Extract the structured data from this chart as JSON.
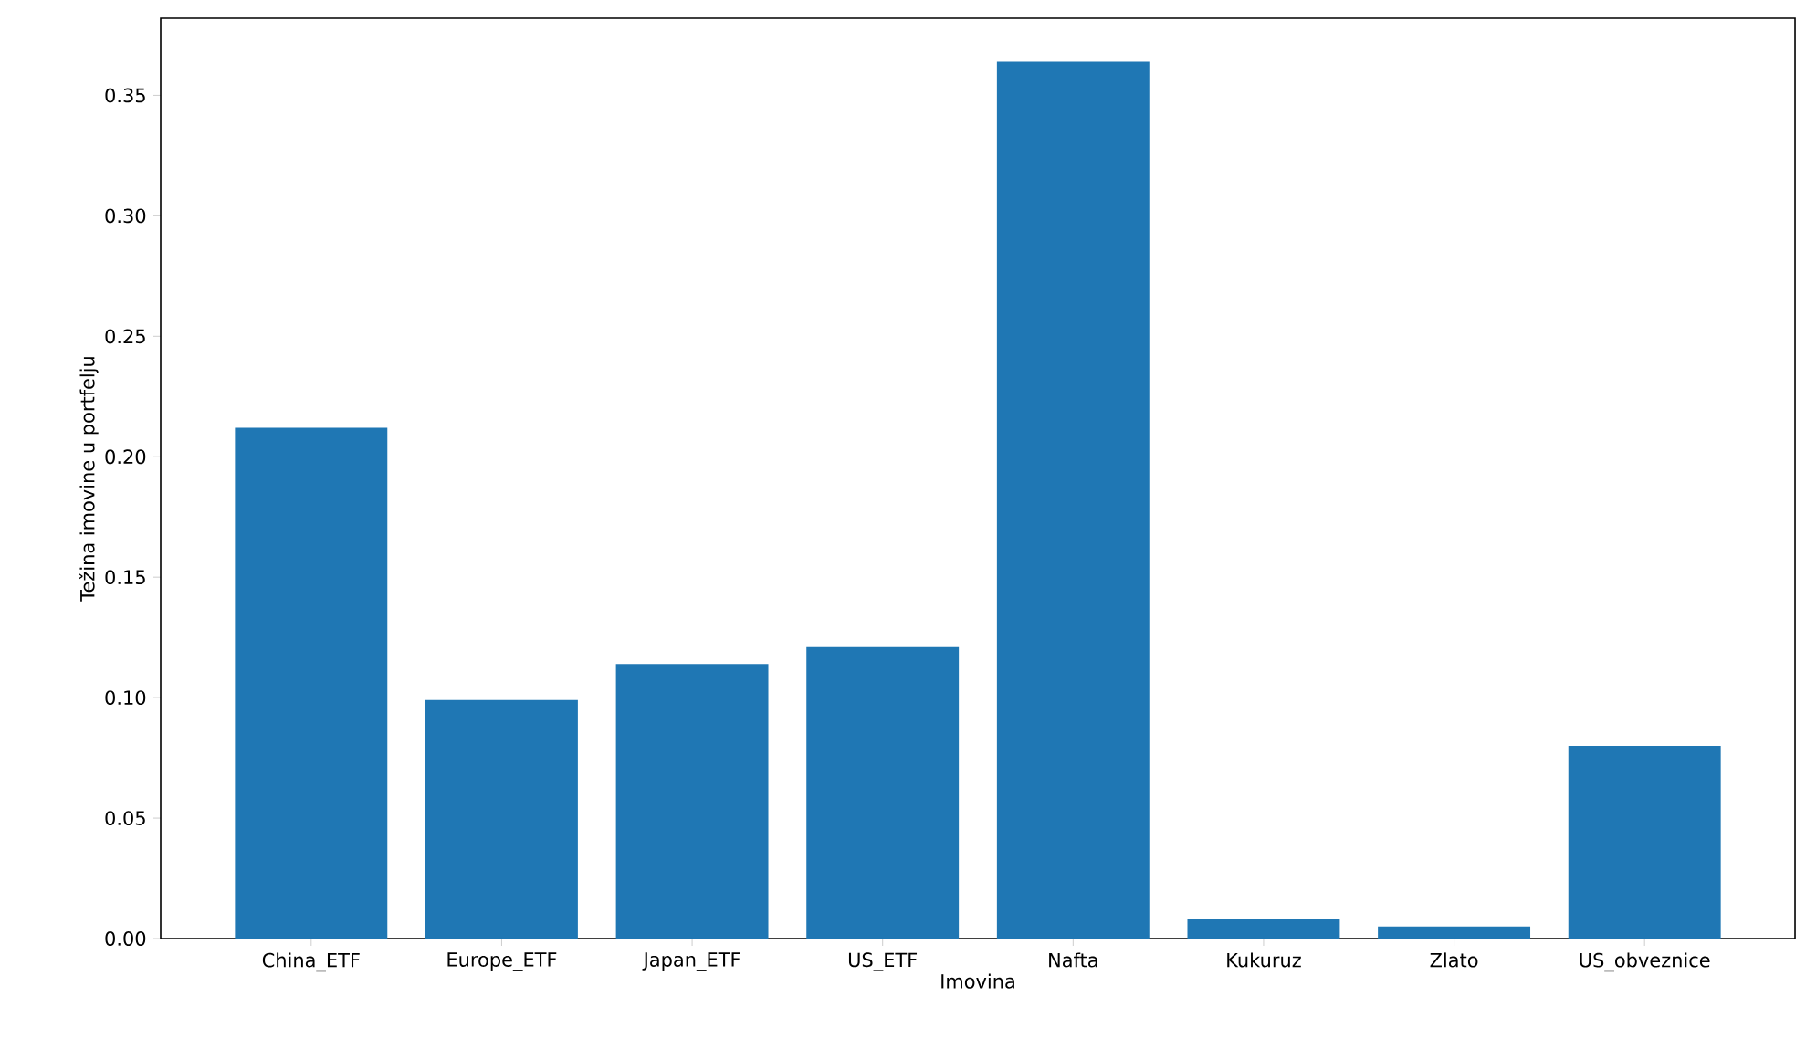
{
  "chart_data": {
    "type": "bar",
    "xlabel": "Imovina",
    "ylabel": "Težina imovine u portfelju",
    "categories": [
      "China_ETF",
      "Europe_ETF",
      "Japan_ETF",
      "US_ETF",
      "Nafta",
      "Kukuruz",
      "Zlato",
      "US_obveznice"
    ],
    "values": [
      0.212,
      0.099,
      0.114,
      0.121,
      0.364,
      0.008,
      0.005,
      0.08
    ],
    "color": "#1f77b4",
    "ylim": [
      0,
      0.382
    ],
    "yticks": [
      {
        "value": 0,
        "label": "0.00"
      },
      {
        "value": 0.05,
        "label": "0.05"
      },
      {
        "value": 0.1,
        "label": "0.10"
      },
      {
        "value": 0.15,
        "label": "0.15"
      },
      {
        "value": 0.2,
        "label": "0.20"
      },
      {
        "value": 0.25,
        "label": "0.25"
      },
      {
        "value": 0.3,
        "label": "0.30"
      },
      {
        "value": 0.35,
        "label": "0.35"
      }
    ],
    "grid": false
  }
}
